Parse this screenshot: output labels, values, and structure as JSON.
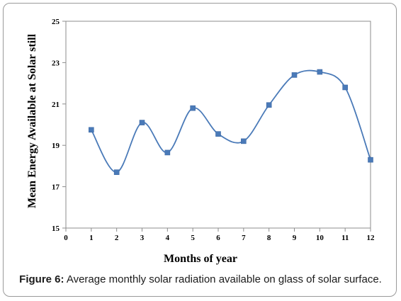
{
  "chart_data": {
    "type": "line",
    "xlabel": "Months of year",
    "ylabel": "Mean Energy Available at Solar still",
    "xlim": [
      0,
      12
    ],
    "ylim": [
      15,
      25
    ],
    "xticks": [
      0,
      1,
      2,
      3,
      4,
      5,
      6,
      7,
      8,
      9,
      10,
      11,
      12
    ],
    "yticks": [
      15,
      17,
      19,
      21,
      23,
      25
    ],
    "grid": false,
    "smooth": true,
    "marker": "square",
    "line_color": "#4a7ab8",
    "marker_color": "#4a7ab8",
    "x": [
      1,
      2,
      3,
      4,
      5,
      6,
      7,
      8,
      9,
      10,
      11,
      12
    ],
    "y": [
      19.75,
      17.7,
      20.1,
      18.65,
      20.8,
      19.55,
      19.2,
      20.95,
      22.4,
      22.55,
      21.8,
      18.3
    ]
  },
  "caption": {
    "label": "Figure 6:",
    "text": " Average monthly solar radiation available on glass of solar surface."
  }
}
